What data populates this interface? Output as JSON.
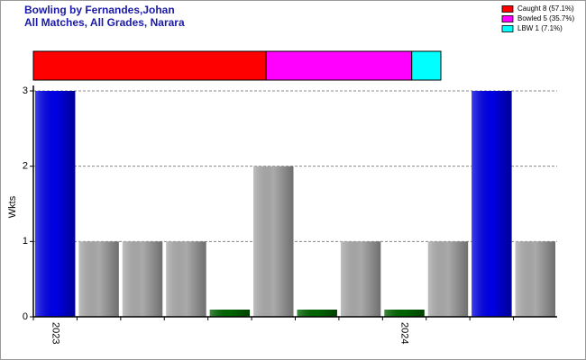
{
  "chart_data": [
    {
      "type": "proportion-bar",
      "series": [
        {
          "name": "Caught 8 (57.1%)",
          "color": "#ff0000",
          "values": [
            8
          ]
        },
        {
          "name": "Bowled 5 (35.7%)",
          "color": "#ff00ff",
          "values": [
            5
          ]
        },
        {
          "name": "LBW 1 (7.1%)",
          "color": "#00ffff",
          "values": [
            1
          ]
        }
      ]
    },
    {
      "type": "bar",
      "title": "Bowling by Fernandes,Johan",
      "subtitle": "All Matches, All Grades, Narara",
      "y_label": "Wkts",
      "categories": [
        "2023",
        null,
        null,
        null,
        null,
        null,
        null,
        null,
        "2024",
        null,
        null,
        null
      ],
      "values": [
        3,
        1,
        1,
        1,
        0,
        2,
        0,
        1,
        0,
        1,
        3,
        1
      ],
      "colors": [
        "#0000e6",
        "#aaaaaa",
        "#aaaaaa",
        "#aaaaaa",
        "#006400",
        "#aaaaaa",
        "#006400",
        "#aaaaaa",
        "#006400",
        "#aaaaaa",
        "#0000e6",
        "#aaaaaa"
      ],
      "ylim": [
        0,
        3
      ],
      "yticks": [
        0,
        1,
        2,
        3
      ],
      "grid": true
    }
  ]
}
